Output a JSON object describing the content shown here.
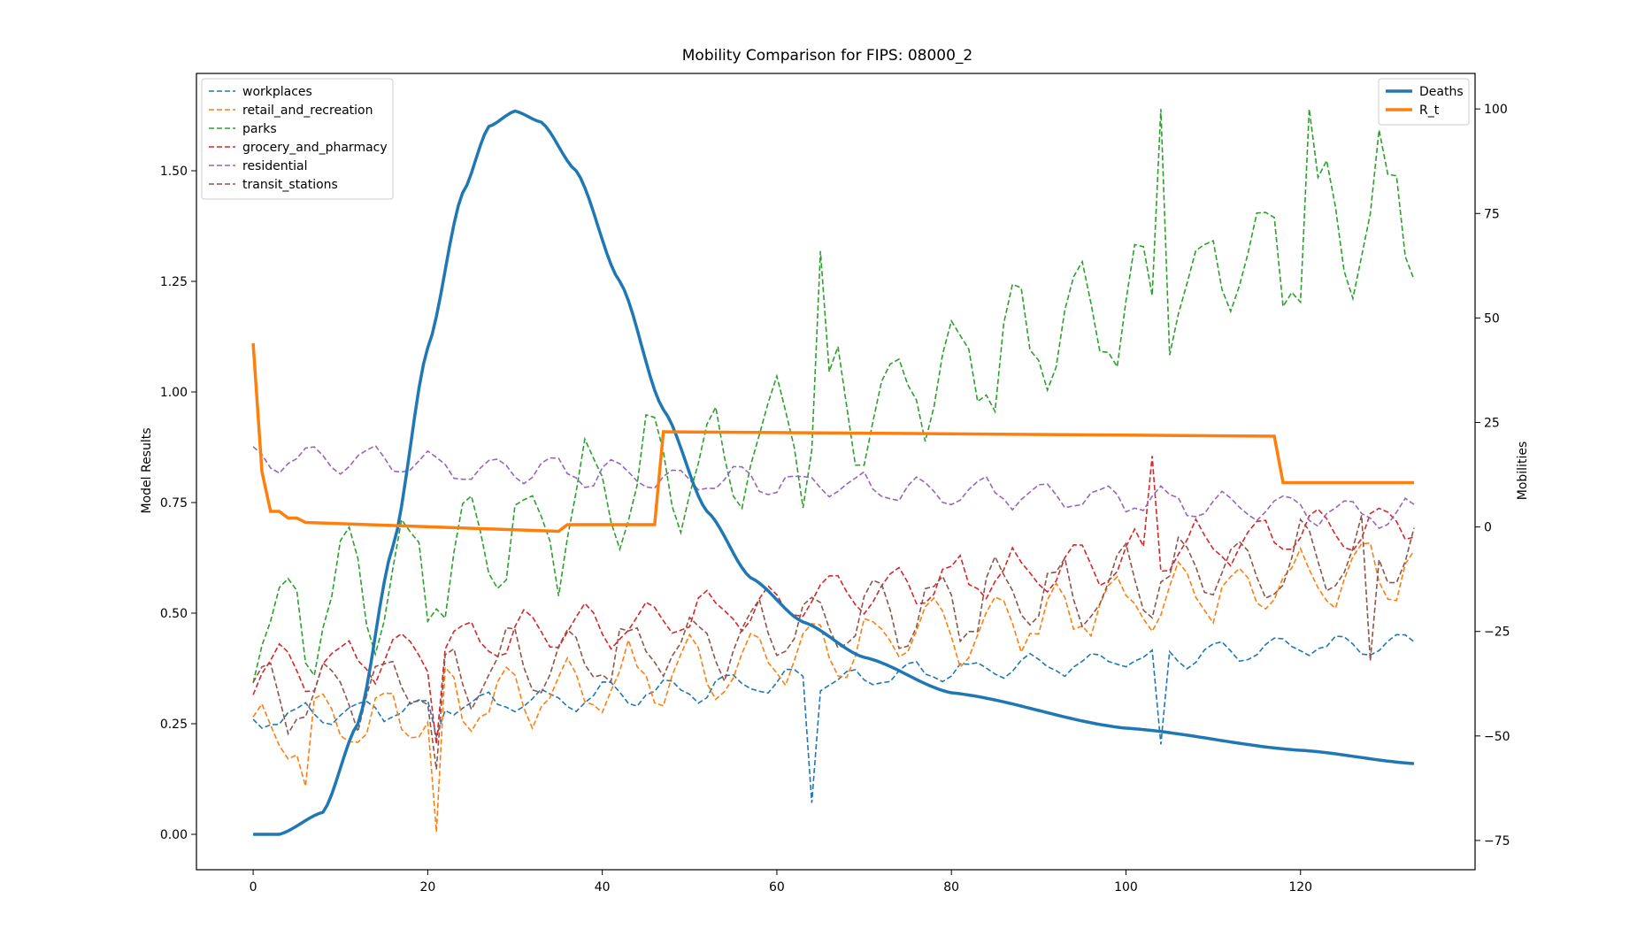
{
  "chart_data": {
    "type": "line",
    "title": "Mobility Comparison for FIPS: 08000_2",
    "xlabel": "",
    "ylabel_left": "Model Results",
    "ylabel_right": "Mobilities",
    "xlim": [
      -6.5,
      140
    ],
    "ylim_left": [
      -0.08,
      1.72
    ],
    "ylim_right": [
      -82,
      108.5
    ],
    "x_ticks": [
      0,
      20,
      40,
      60,
      80,
      100,
      120
    ],
    "y_ticks_left": [
      "0.00",
      "0.25",
      "0.50",
      "0.75",
      "1.00",
      "1.25",
      "1.50"
    ],
    "y_ticks_right": [
      "−75",
      "−50",
      "−25",
      "0",
      "25",
      "50",
      "75",
      "100"
    ],
    "grid": false,
    "legend_left": {
      "placement": "top-left",
      "entries": [
        "workplaces",
        "retail_and_recreation",
        "parks",
        "grocery_and_pharmacy",
        "residential",
        "transit_stations"
      ]
    },
    "legend_right": {
      "placement": "top-right",
      "entries": [
        "Deaths",
        "R_t"
      ]
    },
    "series_left_axis": [
      {
        "name": "Deaths",
        "color": "#1f77b4",
        "style": "solid",
        "description": "smooth curve: 0 until day 3, peak 1.635 at day 30, decays to 0.16 at day 133",
        "key_points": [
          [
            0,
            0
          ],
          [
            3,
            0
          ],
          [
            8,
            0.05
          ],
          [
            12,
            0.25
          ],
          [
            16,
            0.65
          ],
          [
            20,
            1.1
          ],
          [
            24,
            1.45
          ],
          [
            27,
            1.6
          ],
          [
            30,
            1.635
          ],
          [
            33,
            1.61
          ],
          [
            37,
            1.5
          ],
          [
            42,
            1.25
          ],
          [
            47,
            0.96
          ],
          [
            52,
            0.73
          ],
          [
            57,
            0.58
          ],
          [
            63,
            0.48
          ],
          [
            70,
            0.4
          ],
          [
            80,
            0.32
          ],
          [
            100,
            0.24
          ],
          [
            120,
            0.19
          ],
          [
            133,
            0.16
          ]
        ]
      },
      {
        "name": "R_t",
        "color": "#ff7f0e",
        "style": "solid",
        "points": [
          [
            0,
            1.11
          ],
          [
            1,
            0.82
          ],
          [
            2,
            0.73
          ],
          [
            3,
            0.73
          ],
          [
            4,
            0.715
          ],
          [
            5,
            0.715
          ],
          [
            6,
            0.705
          ],
          [
            35,
            0.685
          ],
          [
            36,
            0.7
          ],
          [
            46,
            0.7
          ],
          [
            47,
            0.91
          ],
          [
            117,
            0.9
          ],
          [
            118,
            0.795
          ],
          [
            133,
            0.795
          ]
        ]
      }
    ],
    "series_right_axis": [
      {
        "name": "workplaces",
        "color": "#1f77b4",
        "style": "dashed",
        "range": [
          -66,
          -24
        ],
        "note": "rises ~-47 to ~-24 with a dip near day 64 (-66) and day 104 (-52)"
      },
      {
        "name": "retail_and_recreation",
        "color": "#ff7f0e",
        "style": "dashed",
        "range": [
          -73,
          1
        ],
        "note": "rises from ~-55 to ~-5, weekly oscillation"
      },
      {
        "name": "parks",
        "color": "#2ca02c",
        "style": "dashed",
        "range": [
          -45,
          100
        ],
        "note": "rises from ~-20 to ~80 with spikes to 100"
      },
      {
        "name": "grocery_and_pharmacy",
        "color": "#d62728",
        "style": "dashed",
        "range": [
          -53,
          17
        ],
        "note": "rises from ~-33 to ~3"
      },
      {
        "name": "residential",
        "color": "#9467bd",
        "style": "dashed",
        "range": [
          0,
          23
        ],
        "note": "~16 early falling to ~3"
      },
      {
        "name": "transit_stations",
        "color": "#8c564b",
        "style": "dashed",
        "range": [
          -58,
          11
        ],
        "note": "rises from ~-40 to ~-5, large oscillations"
      }
    ]
  }
}
